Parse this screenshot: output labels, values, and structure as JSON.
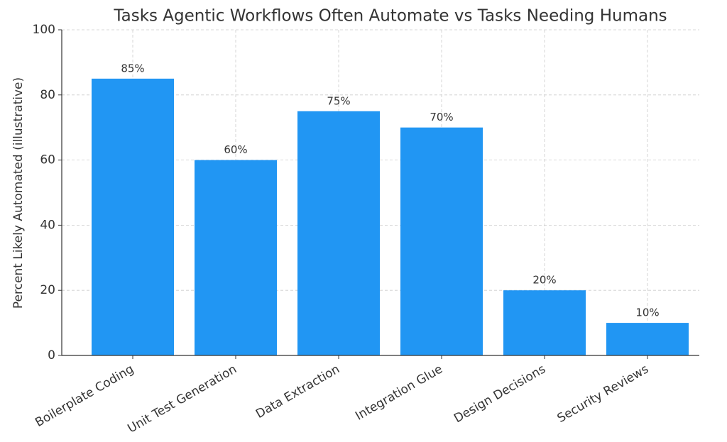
{
  "chart_data": {
    "type": "bar",
    "title": "Tasks Agentic Workflows Often Automate vs Tasks Needing Humans",
    "y_label": "Percent Likely Automated (illustrative)",
    "categories": [
      "Boilerplate Coding",
      "Unit Test Generation",
      "Data Extraction",
      "Integration Glue",
      "Design Decisions",
      "Security Reviews"
    ],
    "values": [
      85,
      60,
      75,
      70,
      20,
      10
    ],
    "value_labels": [
      "85%",
      "60%",
      "75%",
      "70%",
      "20%",
      "10%"
    ],
    "color": "#2196f3",
    "ylim": [
      0,
      100
    ],
    "yticks": [
      0,
      20,
      40,
      60,
      80,
      100
    ],
    "grid": true
  }
}
